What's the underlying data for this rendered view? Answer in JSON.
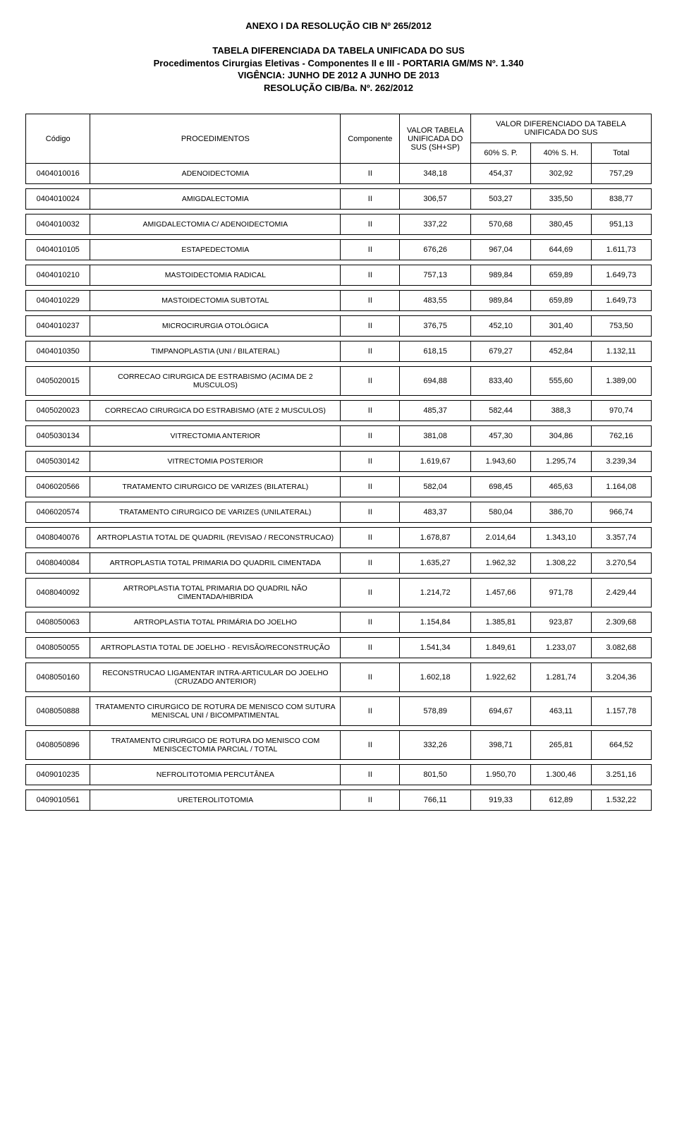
{
  "title": {
    "line1": "ANEXO I DA RESOLUÇÃO CIB Nº 265/2012",
    "line2": "TABELA DIFERENCIADA DA TABELA UNIFICADA DO SUS",
    "line3": "Procedimentos Cirurgias Eletivas - Componentes II e III - PORTARIA GM/MS Nº. 1.340",
    "line4": "VIGÊNCIA: JUNHO DE 2012 A JUNHO DE 2013",
    "line5": "RESOLUÇÃO CIB/Ba. Nº. 262/2012"
  },
  "headers": {
    "codigo": "Código",
    "procedimentos": "PROCEDIMENTOS",
    "componente": "Componente",
    "valor_tabela": "VALOR TABELA UNIFICADA DO SUS (SH+SP)",
    "valor_diferenciado": "VALOR DIFERENCIADO DA TABELA UNIFICADA DO SUS",
    "sub1": "60% S. P.",
    "sub2": "40% S. H.",
    "sub3": "Total"
  },
  "style": {
    "background_color": "#ffffff",
    "text_color": "#000000",
    "border_color": "#000000",
    "font_family": "Arial, sans-serif",
    "title_fontsize": 13,
    "table_fontsize": 11,
    "col_widths": {
      "codigo": 80,
      "proc": 360,
      "comp": 72,
      "valor": 90,
      "sub": 75
    }
  },
  "rows": [
    {
      "codigo": "0404010016",
      "proc": "ADENOIDECTOMIA",
      "comp": "II",
      "v": "348,18",
      "p": "454,37",
      "h": "302,92",
      "t": "757,29"
    },
    {
      "codigo": "0404010024",
      "proc": "AMIGDALECTOMIA",
      "comp": "II",
      "v": "306,57",
      "p": "503,27",
      "h": "335,50",
      "t": "838,77"
    },
    {
      "codigo": "0404010032",
      "proc": "AMIGDALECTOMIA C/ ADENOIDECTOMIA",
      "comp": "II",
      "v": "337,22",
      "p": "570,68",
      "h": "380,45",
      "t": "951,13"
    },
    {
      "codigo": "0404010105",
      "proc": "ESTAPEDECTOMIA",
      "comp": "II",
      "v": "676,26",
      "p": "967,04",
      "h": "644,69",
      "t": "1.611,73"
    },
    {
      "codigo": "0404010210",
      "proc": "MASTOIDECTOMIA RADICAL",
      "comp": "II",
      "v": "757,13",
      "p": "989,84",
      "h": "659,89",
      "t": "1.649,73"
    },
    {
      "codigo": "0404010229",
      "proc": "MASTOIDECTOMIA SUBTOTAL",
      "comp": "II",
      "v": "483,55",
      "p": "989,84",
      "h": "659,89",
      "t": "1.649,73"
    },
    {
      "codigo": "0404010237",
      "proc": "MICROCIRURGIA OTOLÓGICA",
      "comp": "II",
      "v": "376,75",
      "p": "452,10",
      "h": "301,40",
      "t": "753,50"
    },
    {
      "codigo": "0404010350",
      "proc": "TIMPANOPLASTIA (UNI / BILATERAL)",
      "comp": "II",
      "v": "618,15",
      "p": "679,27",
      "h": "452,84",
      "t": "1.132,11"
    },
    {
      "codigo": "0405020015",
      "proc": "CORRECAO CIRURGICA DE ESTRABISMO (ACIMA DE 2 MUSCULOS)",
      "comp": "II",
      "v": "694,88",
      "p": "833,40",
      "h": "555,60",
      "t": "1.389,00"
    },
    {
      "codigo": "0405020023",
      "proc": "CORRECAO CIRURGICA DO ESTRABISMO (ATE 2 MUSCULOS)",
      "comp": "II",
      "v": "485,37",
      "p": "582,44",
      "h": "388,3",
      "t": "970,74"
    },
    {
      "codigo": "0405030134",
      "proc": "VITRECTOMIA ANTERIOR",
      "comp": "II",
      "v": "381,08",
      "p": "457,30",
      "h": "304,86",
      "t": "762,16"
    },
    {
      "codigo": "0405030142",
      "proc": "VITRECTOMIA POSTERIOR",
      "comp": "II",
      "v": "1.619,67",
      "p": "1.943,60",
      "h": "1.295,74",
      "t": "3.239,34"
    },
    {
      "codigo": "0406020566",
      "proc": "TRATAMENTO CIRURGICO DE VARIZES (BILATERAL)",
      "comp": "II",
      "v": "582,04",
      "p": "698,45",
      "h": "465,63",
      "t": "1.164,08"
    },
    {
      "codigo": "0406020574",
      "proc": "TRATAMENTO CIRURGICO DE VARIZES (UNILATERAL)",
      "comp": "II",
      "v": "483,37",
      "p": "580,04",
      "h": "386,70",
      "t": "966,74"
    },
    {
      "codigo": "0408040076",
      "proc": "ARTROPLASTIA TOTAL DE QUADRIL (REVISAO / RECONSTRUCAO)",
      "comp": "II",
      "v": "1.678,87",
      "p": "2.014,64",
      "h": "1.343,10",
      "t": "3.357,74"
    },
    {
      "codigo": "0408040084",
      "proc": "ARTROPLASTIA TOTAL PRIMARIA DO QUADRIL CIMENTADA",
      "comp": "II",
      "v": "1.635,27",
      "p": "1.962,32",
      "h": "1.308,22",
      "t": "3.270,54"
    },
    {
      "codigo": "0408040092",
      "proc": "ARTROPLASTIA TOTAL PRIMARIA DO QUADRIL NÃO CIMENTADA/HIBRIDA",
      "comp": "II",
      "v": "1.214,72",
      "p": "1.457,66",
      "h": "971,78",
      "t": "2.429,44"
    },
    {
      "codigo": "0408050063",
      "proc": "ARTROPLASTIA TOTAL PRIMÁRIA DO JOELHO",
      "comp": "II",
      "v": "1.154,84",
      "p": "1.385,81",
      "h": "923,87",
      "t": "2.309,68"
    },
    {
      "codigo": "0408050055",
      "proc": "ARTROPLASTIA TOTAL DE JOELHO - REVISÃO/RECONSTRUÇÃO",
      "comp": "II",
      "v": "1.541,34",
      "p": "1.849,61",
      "h": "1.233,07",
      "t": "3.082,68"
    },
    {
      "codigo": "0408050160",
      "proc": "RECONSTRUCAO LIGAMENTAR INTRA-ARTICULAR DO JOELHO (CRUZADO ANTERIOR)",
      "comp": "II",
      "v": "1.602,18",
      "p": "1.922,62",
      "h": "1.281,74",
      "t": "3.204,36"
    },
    {
      "codigo": "0408050888",
      "proc": "TRATAMENTO CIRURGICO DE ROTURA DE MENISCO COM SUTURA MENISCAL UNI / BICOMPATIMENTAL",
      "comp": "II",
      "v": "578,89",
      "p": "694,67",
      "h": "463,11",
      "t": "1.157,78"
    },
    {
      "codigo": "0408050896",
      "proc": "TRATAMENTO CIRURGICO DE ROTURA DO MENISCO COM MENISCECTOMIA PARCIAL / TOTAL",
      "comp": "II",
      "v": "332,26",
      "p": "398,71",
      "h": "265,81",
      "t": "664,52"
    },
    {
      "codigo": "0409010235",
      "proc": "NEFROLITOTOMIA PERCUTÂNEA",
      "comp": "II",
      "v": "801,50",
      "p": "1.950,70",
      "h": "1.300,46",
      "t": "3.251,16"
    },
    {
      "codigo": "0409010561",
      "proc": "URETEROLITOTOMIA",
      "comp": "II",
      "v": "766,11",
      "p": "919,33",
      "h": "612,89",
      "t": "1.532,22"
    }
  ]
}
